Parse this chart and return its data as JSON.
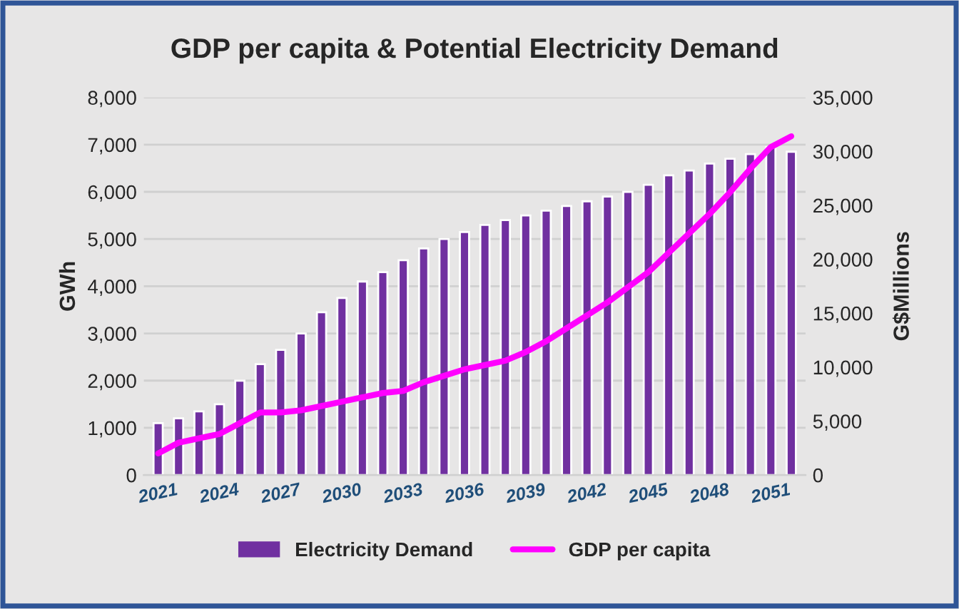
{
  "chart_data": {
    "type": "bar",
    "title": "GDP per capita & Potential Electricity Demand",
    "ylabel": "GWh",
    "y2label": "G$Millions",
    "categories": [
      "2021",
      null,
      null,
      "2024",
      null,
      null,
      "2027",
      null,
      null,
      "2030",
      null,
      null,
      "2033",
      null,
      null,
      "2036",
      null,
      null,
      "2039",
      null,
      null,
      "2042",
      null,
      null,
      "2045",
      null,
      null,
      "2048",
      null,
      null,
      "2051",
      null
    ],
    "series": [
      {
        "name": "Electricity Demand",
        "color": "#7030a0",
        "values": [
          1100,
          1200,
          1350,
          1500,
          2000,
          2350,
          2650,
          3000,
          3450,
          3750,
          4100,
          4300,
          4550,
          4800,
          5000,
          5150,
          5300,
          5400,
          5500,
          5600,
          5700,
          5800,
          5900,
          6000,
          6150,
          6350,
          6450,
          6600,
          6700,
          6800,
          6950,
          6850
        ]
      },
      {
        "name": "GDP per capita",
        "type": "line",
        "axis": "y2",
        "color": "#ff00ff",
        "values": [
          2000,
          3000,
          3400,
          3800,
          4800,
          5800,
          5800,
          6000,
          6400,
          6800,
          7200,
          7600,
          7800,
          8600,
          9200,
          9800,
          10200,
          10600,
          11400,
          12400,
          13600,
          14800,
          16000,
          17400,
          18800,
          20600,
          22400,
          24200,
          26200,
          28400,
          30400,
          31400
        ]
      }
    ],
    "ylim": [
      0,
      8000
    ],
    "yticks": [
      {
        "value": 0,
        "label": "0"
      },
      {
        "value": 1000,
        "label": "1,000"
      },
      {
        "value": 2000,
        "label": "2,000"
      },
      {
        "value": 3000,
        "label": "3,000"
      },
      {
        "value": 4000,
        "label": "4,000"
      },
      {
        "value": 5000,
        "label": "5,000"
      },
      {
        "value": 6000,
        "label": "6,000"
      },
      {
        "value": 7000,
        "label": "7,000"
      },
      {
        "value": 8000,
        "label": "8,000"
      }
    ],
    "y2lim": [
      0,
      35000
    ],
    "y2ticks": [
      {
        "value": 0,
        "label": "0"
      },
      {
        "value": 5000,
        "label": "5,000"
      },
      {
        "value": 10000,
        "label": "10,000"
      },
      {
        "value": 15000,
        "label": "15,000"
      },
      {
        "value": 20000,
        "label": "20,000"
      },
      {
        "value": 25000,
        "label": "25,000"
      },
      {
        "value": 30000,
        "label": "30,000"
      },
      {
        "value": 35000,
        "label": "35,000"
      }
    ],
    "grid": "y",
    "legend": "bottom",
    "marker": "none",
    "line_style": "solid"
  }
}
